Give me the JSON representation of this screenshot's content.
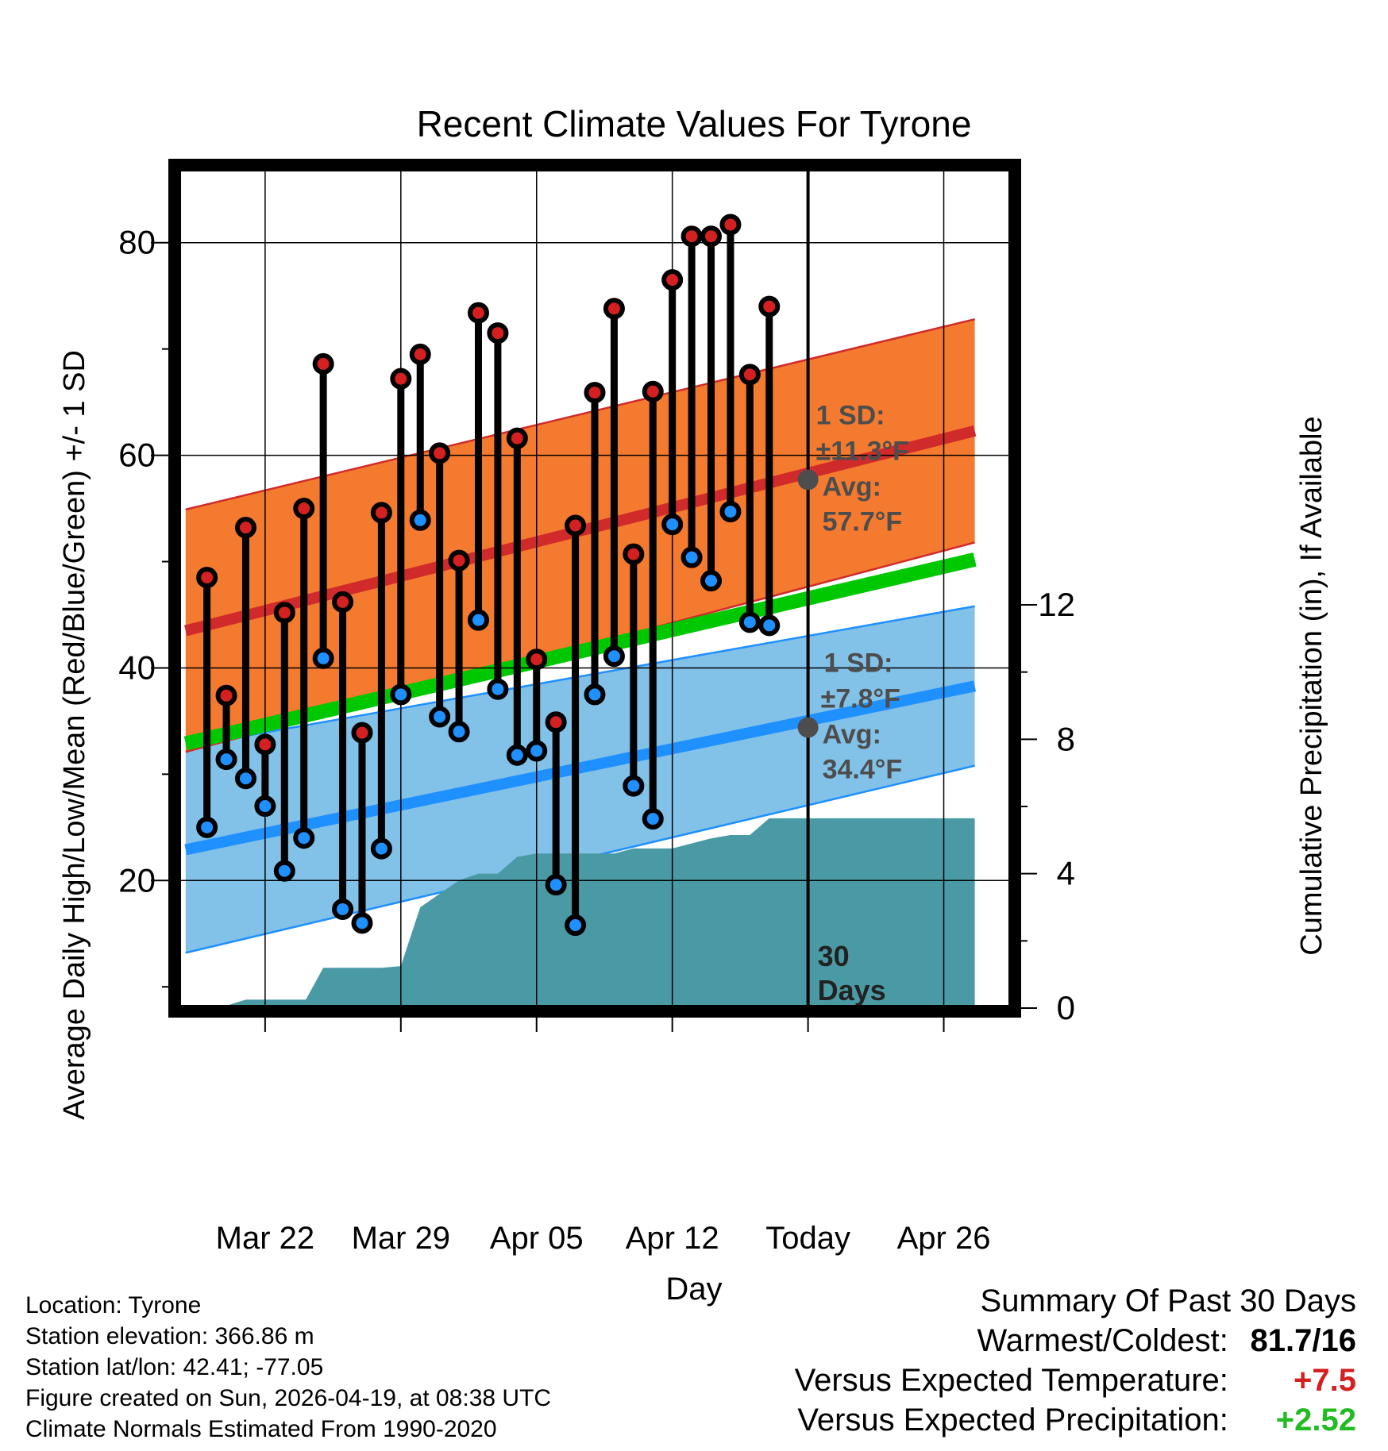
{
  "title": "Recent Climate Values For Tyrone",
  "chart_data": {
    "type": "line",
    "title": "Recent Climate Values For Tyrone",
    "xlabel": "Day",
    "ylabel": "Average Daily High/Low/Mean (Red/Blue/Green) +/- 1 SD",
    "y2label": "Cumulative Precipitation (in), If Available",
    "ylim": [
      8,
      87
    ],
    "y2lim": [
      0,
      25
    ],
    "x_range": [
      -31.5,
      11.5
    ],
    "yticks": [
      20,
      40,
      60,
      80
    ],
    "y_minor_ticks": [
      10,
      30,
      50,
      70
    ],
    "y2ticks": [
      0,
      4,
      8,
      12
    ],
    "xticks": [
      {
        "x": -27,
        "label": "Mar 22"
      },
      {
        "x": -20,
        "label": "Mar 29"
      },
      {
        "x": -13,
        "label": "Apr 05"
      },
      {
        "x": -6,
        "label": "Apr 12"
      },
      {
        "x": 1,
        "label": "Today"
      },
      {
        "x": 8,
        "label": "Apr 26"
      }
    ],
    "today_x": 1,
    "today_label": [
      "30",
      "Days"
    ],
    "normals": {
      "x_start": -31.1,
      "x_end": 9.6,
      "high_mean": [
        43.5,
        62.3
      ],
      "high_sd": [
        11.4,
        10.5
      ],
      "mean_line": [
        32.9,
        50.2
      ],
      "low_mean": [
        22.9,
        38.3
      ],
      "low_sd": [
        9.7,
        7.5
      ]
    },
    "days": [
      {
        "x": -30,
        "high": 48.5,
        "low": 25.0
      },
      {
        "x": -29,
        "high": 37.4,
        "low": 31.4
      },
      {
        "x": -28,
        "high": 53.2,
        "low": 29.6
      },
      {
        "x": -27,
        "high": 32.8,
        "low": 27.0
      },
      {
        "x": -26,
        "high": 45.2,
        "low": 20.9
      },
      {
        "x": -25,
        "high": 55.0,
        "low": 24.0
      },
      {
        "x": -24,
        "high": 68.6,
        "low": 40.9
      },
      {
        "x": -23,
        "high": 46.2,
        "low": 17.3
      },
      {
        "x": -22,
        "high": 33.9,
        "low": 16.0
      },
      {
        "x": -21,
        "high": 54.6,
        "low": 23.0
      },
      {
        "x": -20,
        "high": 67.2,
        "low": 37.5
      },
      {
        "x": -19,
        "high": 69.5,
        "low": 53.9
      },
      {
        "x": -18,
        "high": 60.2,
        "low": 35.4
      },
      {
        "x": -17,
        "high": 50.1,
        "low": 34.0
      },
      {
        "x": -16,
        "high": 73.4,
        "low": 44.5
      },
      {
        "x": -15,
        "high": 71.5,
        "low": 38.0
      },
      {
        "x": -14,
        "high": 61.6,
        "low": 31.8
      },
      {
        "x": -13,
        "high": 40.8,
        "low": 32.2
      },
      {
        "x": -12,
        "high": 34.9,
        "low": 19.6
      },
      {
        "x": -11,
        "high": 53.4,
        "low": 15.8
      },
      {
        "x": -10,
        "high": 65.9,
        "low": 37.5
      },
      {
        "x": -9,
        "high": 73.8,
        "low": 41.1
      },
      {
        "x": -8,
        "high": 50.7,
        "low": 28.9
      },
      {
        "x": -7,
        "high": 66.0,
        "low": 25.8
      },
      {
        "x": -6,
        "high": 76.5,
        "low": 53.5
      },
      {
        "x": -5,
        "high": 80.6,
        "low": 50.4
      },
      {
        "x": -4,
        "high": 80.6,
        "low": 48.2
      },
      {
        "x": -3,
        "high": 81.7,
        "low": 54.7
      },
      {
        "x": -2,
        "high": 67.6,
        "low": 44.3
      },
      {
        "x": -1,
        "high": 74.0,
        "low": 44.0
      }
    ],
    "precipitation": [
      [
        -31.2,
        0.0
      ],
      [
        -30.7,
        0.07
      ],
      [
        -29.0,
        0.07
      ],
      [
        -28.0,
        0.25
      ],
      [
        -24.9,
        0.25
      ],
      [
        -24.0,
        1.2
      ],
      [
        -21.0,
        1.2
      ],
      [
        -20.0,
        1.25
      ],
      [
        -19.0,
        3.0
      ],
      [
        -17.0,
        3.8
      ],
      [
        -16.0,
        4.0
      ],
      [
        -15.0,
        4.0
      ],
      [
        -14.0,
        4.5
      ],
      [
        -13.0,
        4.6
      ],
      [
        -9.0,
        4.6
      ],
      [
        -8.0,
        4.75
      ],
      [
        -6.0,
        4.75
      ],
      [
        -4.0,
        5.05
      ],
      [
        -3.0,
        5.15
      ],
      [
        -2.0,
        5.15
      ],
      [
        -1.0,
        5.65
      ],
      [
        9.6,
        5.65
      ]
    ],
    "annotations": {
      "high": {
        "sd_label": "1 SD:",
        "sd_value": "±11.3°F",
        "avg_label": "Avg:",
        "avg_value": "57.7°F",
        "avg": 57.7
      },
      "low": {
        "sd_label": "1 SD:",
        "sd_value": "±7.8°F",
        "avg_label": "Avg:",
        "avg_value": "34.4°F",
        "avg": 34.4
      }
    },
    "colors": {
      "high_band": "#f47a2f",
      "high_line": "#d12a2a",
      "mean_line": "#00c800",
      "low_band": "#82c1e8",
      "low_line": "#1e90ff",
      "precip": "#4a9aa5",
      "high_dot": "#d42020",
      "low_dot": "#1e90ff",
      "annotation": "#4d4d4d"
    }
  },
  "info": {
    "location": "Location: Tyrone",
    "elevation": "Station elevation: 366.86 m",
    "latlon": "Station lat/lon: 42.41; -77.05",
    "created": "Figure created on Sun, 2026-04-19, at 08:38 UTC",
    "normals": "Climate Normals Estimated From 1990-2020"
  },
  "summary": {
    "title": "Summary Of Past 30 Days",
    "warmest_coldest_label": "Warmest/Coldest:",
    "warmest_coldest_value": "81.7/16",
    "temp_label": "Versus Expected Temperature:",
    "temp_value": "+7.5",
    "temp_color": "#d42020",
    "precip_label": "Versus Expected Precipitation:",
    "precip_value": "+2.52",
    "precip_color": "#22bb22"
  }
}
